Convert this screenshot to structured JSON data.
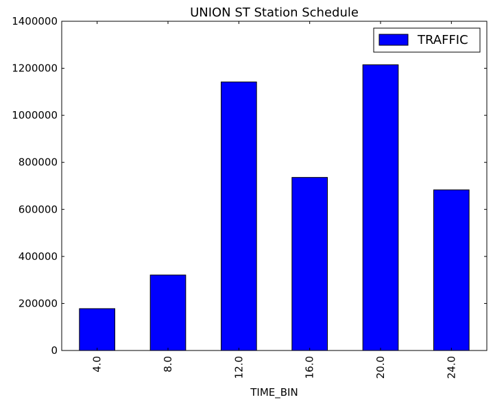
{
  "chart_data": {
    "type": "bar",
    "title": "UNION ST Station Schedule",
    "xlabel": "TIME_BIN",
    "ylabel": "",
    "categories": [
      "4.0",
      "8.0",
      "12.0",
      "16.0",
      "20.0",
      "24.0"
    ],
    "series": [
      {
        "name": "TRAFFIC",
        "values": [
          178000,
          321000,
          1142000,
          736000,
          1215000,
          683000
        ],
        "color": "#0000ff"
      }
    ],
    "ylim": [
      0,
      1400000
    ],
    "yticks": [
      0,
      200000,
      400000,
      600000,
      800000,
      1000000,
      1200000,
      1400000
    ],
    "ytick_labels": [
      "0",
      "200000",
      "400000",
      "600000",
      "800000",
      "1000000",
      "1200000",
      "1400000"
    ],
    "grid": false,
    "legend_position": "top-right"
  }
}
